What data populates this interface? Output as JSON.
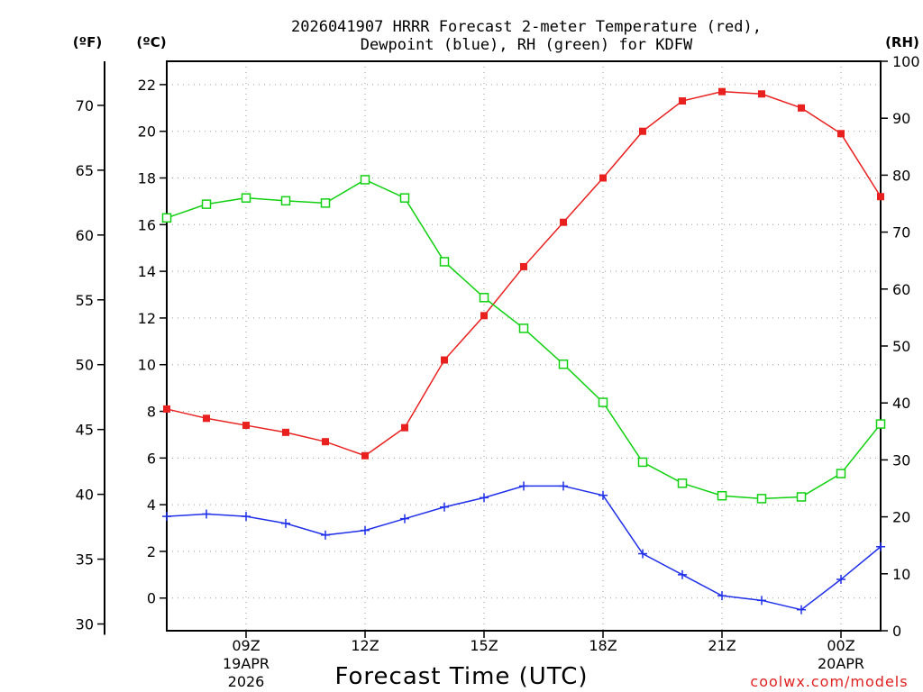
{
  "chart_data": {
    "type": "line",
    "title_line1": "2026041907 HRRR Forecast 2-meter Temperature (red),",
    "title_line2": "Dewpoint (blue), RH (green) for KDFW",
    "xlabel": "Forecast Time (UTC)",
    "credit": "coolwx.com/models",
    "unit_f": "(ºF)",
    "unit_c": "(ºC)",
    "unit_rh": "(RH)",
    "x_hours": [
      7,
      8,
      9,
      10,
      11,
      12,
      13,
      14,
      15,
      16,
      17,
      18,
      19,
      20,
      21,
      22,
      23,
      24,
      25
    ],
    "x_range": [
      7,
      25
    ],
    "x_ticks": [
      {
        "hour": 9,
        "label": "09Z",
        "date": "19APR",
        "year": "2026"
      },
      {
        "hour": 12,
        "label": "12Z"
      },
      {
        "hour": 15,
        "label": "15Z"
      },
      {
        "hour": 18,
        "label": "18Z"
      },
      {
        "hour": 21,
        "label": "21Z"
      },
      {
        "hour": 24,
        "label": "00Z",
        "date": "20APR"
      }
    ],
    "c_range": [
      -1.4,
      23.0
    ],
    "c_ticks": [
      0,
      2,
      4,
      6,
      8,
      10,
      12,
      14,
      16,
      18,
      20,
      22
    ],
    "f_ticks": [
      30,
      35,
      40,
      45,
      50,
      55,
      60,
      65,
      70
    ],
    "rh_range": [
      0,
      100
    ],
    "rh_ticks": [
      0,
      10,
      20,
      30,
      40,
      50,
      60,
      70,
      80,
      90,
      100
    ],
    "series": [
      {
        "name": "Temperature",
        "unit": "C",
        "color": "#e8201e",
        "values": [
          8.1,
          7.7,
          7.4,
          7.1,
          6.7,
          6.1,
          7.3,
          10.2,
          12.1,
          14.2,
          16.1,
          18.0,
          20.0,
          21.3,
          21.7,
          21.6,
          21.0,
          19.9,
          17.2
        ]
      },
      {
        "name": "Dewpoint",
        "unit": "C",
        "color": "#2030e8",
        "values": [
          3.5,
          3.6,
          3.5,
          3.2,
          2.7,
          2.9,
          3.4,
          3.9,
          4.3,
          4.8,
          4.8,
          4.4,
          1.9,
          1.0,
          0.1,
          -0.1,
          -0.5,
          0.8,
          2.2
        ]
      },
      {
        "name": "RH",
        "unit": "%",
        "color": "#10d010",
        "values": [
          72.5,
          74.9,
          76.0,
          75.5,
          75.1,
          79.2,
          76.0,
          64.8,
          58.5,
          53.1,
          46.8,
          40.1,
          29.6,
          25.9,
          23.7,
          23.2,
          23.5,
          27.6,
          36.3
        ]
      }
    ]
  }
}
